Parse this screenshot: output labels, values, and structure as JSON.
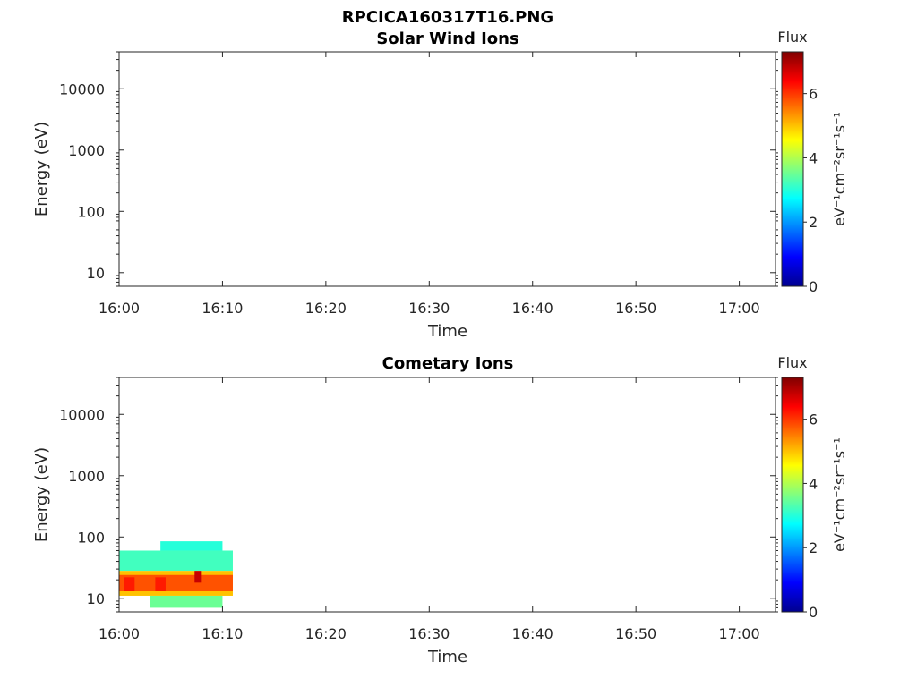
{
  "figure_title": "RPCICA160317T16.PNG",
  "colormap": [
    "#00008f",
    "#0000ff",
    "#0080ff",
    "#00ffff",
    "#80ff80",
    "#ffff00",
    "#ff8000",
    "#ff0000",
    "#800000"
  ],
  "chart_data": [
    {
      "type": "heatmap",
      "title": "Solar Wind Ions",
      "xlabel": "Time",
      "ylabel": "Energy (eV)",
      "x_ticks": [
        "16:00",
        "16:10",
        "16:20",
        "16:30",
        "16:40",
        "16:50",
        "17:00"
      ],
      "x_range_minutes": [
        0,
        63.5
      ],
      "y_scale": "log",
      "y_ticks": [
        "10",
        "100",
        "1000",
        "10000"
      ],
      "y_range": [
        6,
        40000
      ],
      "colorbar": {
        "title": "Flux",
        "label": "eV⁻¹cm⁻²sr⁻¹s⁻¹",
        "range": [
          0,
          7.3
        ],
        "ticks": [
          "0",
          "2",
          "4",
          "6"
        ]
      },
      "data": []
    },
    {
      "type": "heatmap",
      "title": "Cometary Ions",
      "xlabel": "Time",
      "ylabel": "Energy (eV)",
      "x_ticks": [
        "16:00",
        "16:10",
        "16:20",
        "16:30",
        "16:40",
        "16:50",
        "17:00"
      ],
      "x_range_minutes": [
        0,
        63.5
      ],
      "y_scale": "log",
      "y_ticks": [
        "10",
        "100",
        "1000",
        "10000"
      ],
      "y_range": [
        6,
        40000
      ],
      "colorbar": {
        "title": "Flux",
        "label": "eV⁻¹cm⁻²sr⁻¹s⁻¹",
        "range": [
          0,
          7.3
        ],
        "ticks": [
          "0",
          "2",
          "4",
          "6"
        ]
      },
      "data": [
        {
          "t": [
            0,
            11
          ],
          "e": [
            28,
            60
          ],
          "flux": 3.2
        },
        {
          "t": [
            0,
            11
          ],
          "e": [
            11,
            28
          ],
          "flux": 5.0
        },
        {
          "t": [
            0,
            11
          ],
          "e": [
            13,
            24
          ],
          "flux": 5.8
        },
        {
          "t": [
            0.5,
            1.5
          ],
          "e": [
            13,
            22
          ],
          "flux": 6.2
        },
        {
          "t": [
            3.5,
            4.5
          ],
          "e": [
            13,
            22
          ],
          "flux": 6.2
        },
        {
          "t": [
            7.3,
            8.0
          ],
          "e": [
            18,
            28
          ],
          "flux": 6.8
        },
        {
          "t": [
            4,
            10
          ],
          "e": [
            60,
            85
          ],
          "flux": 3.0
        },
        {
          "t": [
            3,
            10
          ],
          "e": [
            7,
            11
          ],
          "flux": 3.5
        }
      ]
    }
  ]
}
